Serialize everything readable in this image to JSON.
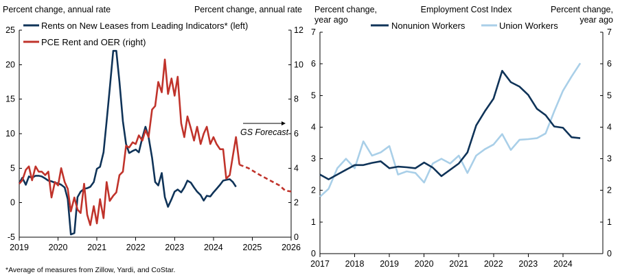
{
  "chart_data": [
    {
      "type": "line",
      "left_axis_title": "Percent change, annual rate",
      "right_axis_title": "Percent change, annual rate",
      "x_ticks": [
        "2019",
        "2020",
        "2021",
        "2022",
        "2023",
        "2024",
        "2025",
        "2026"
      ],
      "left_ylim": [
        -5,
        25
      ],
      "left_ticks": [
        -5,
        0,
        5,
        10,
        15,
        20,
        25
      ],
      "right_ylim": [
        0,
        12
      ],
      "right_ticks": [
        0,
        2,
        4,
        6,
        8,
        10,
        12
      ],
      "annotation": "GS Forecast",
      "footnote": "*Average of measures  from Zillow, Yardi, and CoStar.",
      "series": [
        {
          "name": "Rents on New Leases from Leading Indicators* (left)",
          "axis": "left",
          "color": "#0f3358",
          "x": [
            2019.0,
            2019.08,
            2019.17,
            2019.25,
            2019.33,
            2019.42,
            2019.5,
            2019.58,
            2019.67,
            2019.75,
            2019.83,
            2019.92,
            2020.0,
            2020.08,
            2020.17,
            2020.25,
            2020.33,
            2020.42,
            2020.5,
            2020.58,
            2020.67,
            2020.75,
            2020.83,
            2020.92,
            2021.0,
            2021.08,
            2021.17,
            2021.25,
            2021.33,
            2021.42,
            2021.5,
            2021.58,
            2021.67,
            2021.75,
            2021.83,
            2021.92,
            2022.0,
            2022.08,
            2022.17,
            2022.25,
            2022.33,
            2022.42,
            2022.5,
            2022.58,
            2022.67,
            2022.75,
            2022.83,
            2022.92,
            2023.0,
            2023.08,
            2023.17,
            2023.25,
            2023.33,
            2023.42,
            2023.5,
            2023.58,
            2023.67,
            2023.75,
            2023.83,
            2023.92,
            2024.0,
            2024.08,
            2024.17,
            2024.25,
            2024.33,
            2024.42,
            2024.5,
            2024.58
          ],
          "values": [
            2.8,
            3.6,
            2.6,
            3.8,
            3.6,
            3.9,
            3.9,
            3.8,
            3.5,
            3.2,
            3.1,
            2.9,
            2.8,
            2.6,
            2.2,
            0.5,
            -4.6,
            -4.4,
            0.8,
            1.6,
            2.0,
            2.1,
            2.3,
            3.0,
            4.9,
            5.2,
            7.3,
            11.8,
            16.5,
            22.0,
            22.0,
            17.5,
            11.8,
            8.5,
            7.2,
            7.5,
            7.7,
            7.3,
            9.4,
            11.0,
            9.5,
            6.5,
            3.0,
            2.5,
            4.3,
            0.8,
            -0.6,
            0.5,
            1.6,
            1.9,
            1.5,
            2.2,
            3.2,
            2.9,
            2.2,
            1.6,
            1.1,
            0.3,
            1.0,
            0.9,
            1.5,
            2.0,
            2.6,
            3.2,
            3.3,
            3.4,
            3.0,
            2.3
          ]
        },
        {
          "name": "PCE Rent and OER (right)",
          "axis": "right",
          "color": "#c0332b",
          "x": [
            2019.0,
            2019.08,
            2019.17,
            2019.25,
            2019.33,
            2019.42,
            2019.5,
            2019.58,
            2019.67,
            2019.75,
            2019.83,
            2019.92,
            2020.0,
            2020.08,
            2020.17,
            2020.25,
            2020.33,
            2020.42,
            2020.5,
            2020.58,
            2020.67,
            2020.75,
            2020.83,
            2020.92,
            2021.0,
            2021.08,
            2021.17,
            2021.25,
            2021.33,
            2021.42,
            2021.5,
            2021.58,
            2021.67,
            2021.75,
            2021.83,
            2021.92,
            2022.0,
            2022.08,
            2022.17,
            2022.25,
            2022.33,
            2022.42,
            2022.5,
            2022.58,
            2022.67,
            2022.75,
            2022.83,
            2022.92,
            2023.0,
            2023.08,
            2023.17,
            2023.25,
            2023.33,
            2023.42,
            2023.5,
            2023.58,
            2023.67,
            2023.75,
            2023.83,
            2023.92,
            2024.0,
            2024.08,
            2024.17,
            2024.25,
            2024.33,
            2024.42,
            2024.5,
            2024.58,
            2024.67
          ],
          "values": [
            3.1,
            3.3,
            3.9,
            4.1,
            3.3,
            4.1,
            3.8,
            3.8,
            3.6,
            3.8,
            2.3,
            3.2,
            3.0,
            4.0,
            3.2,
            2.8,
            1.5,
            2.3,
            1.6,
            1.4,
            3.1,
            1.3,
            0.7,
            1.8,
            0.8,
            2.2,
            1.1,
            3.2,
            2.1,
            2.4,
            2.6,
            3.6,
            3.8,
            5.3,
            5.2,
            5.5,
            5.4,
            5.9,
            5.6,
            6.2,
            5.8,
            7.4,
            7.6,
            9.0,
            8.4,
            10.3,
            8.3,
            9.2,
            8.2,
            9.3,
            6.6,
            5.8,
            7.0,
            6.3,
            5.6,
            6.4,
            5.4,
            6.0,
            6.4,
            5.4,
            5.8,
            5.4,
            5.1,
            5.1,
            3.4,
            3.6,
            4.7,
            5.8,
            4.2
          ]
        },
        {
          "name": "PCE Rent and OER forecast",
          "axis": "right",
          "color": "#c0332b",
          "dashed": true,
          "x": [
            2024.67,
            2024.9,
            2025.2,
            2025.45,
            2025.7,
            2025.85,
            2026.0
          ],
          "values": [
            4.2,
            4.0,
            3.6,
            3.3,
            3.0,
            2.7,
            2.65
          ]
        }
      ]
    },
    {
      "type": "line",
      "title": "Employment Cost Index",
      "left_axis_title": "Percent change, year ago",
      "right_axis_title": "Percent change, year ago",
      "x_ticks": [
        "2017",
        "2018",
        "2019",
        "2020",
        "2021",
        "2022",
        "2023",
        "2024"
      ],
      "ylim": [
        0,
        7
      ],
      "y_ticks": [
        0,
        1,
        2,
        3,
        4,
        5,
        6,
        7
      ],
      "series": [
        {
          "name": "Nonunion Workers",
          "color": "#0f3358",
          "x": [
            2017.0,
            2017.25,
            2017.5,
            2017.75,
            2018.0,
            2018.25,
            2018.5,
            2018.75,
            2019.0,
            2019.25,
            2019.5,
            2019.75,
            2020.0,
            2020.25,
            2020.5,
            2020.75,
            2021.0,
            2021.25,
            2021.5,
            2021.75,
            2022.0,
            2022.25,
            2022.5,
            2022.75,
            2023.0,
            2023.25,
            2023.5,
            2023.75,
            2024.0,
            2024.25,
            2024.5
          ],
          "values": [
            2.5,
            2.35,
            2.5,
            2.65,
            2.8,
            2.8,
            2.87,
            2.92,
            2.7,
            2.75,
            2.73,
            2.7,
            2.88,
            2.72,
            2.45,
            2.65,
            2.85,
            3.2,
            4.05,
            4.5,
            4.9,
            5.78,
            5.42,
            5.28,
            5.02,
            4.58,
            4.38,
            4.02,
            3.98,
            3.68,
            3.65
          ]
        },
        {
          "name": "Union Workers",
          "color": "#a9cfe8",
          "x": [
            2017.0,
            2017.25,
            2017.5,
            2017.75,
            2018.0,
            2018.25,
            2018.5,
            2018.75,
            2019.0,
            2019.25,
            2019.5,
            2019.75,
            2020.0,
            2020.25,
            2020.5,
            2020.75,
            2021.0,
            2021.25,
            2021.5,
            2021.75,
            2022.0,
            2022.25,
            2022.5,
            2022.75,
            2023.0,
            2023.25,
            2023.5,
            2023.75,
            2024.0,
            2024.25,
            2024.5
          ],
          "values": [
            1.8,
            2.05,
            2.7,
            3.0,
            2.7,
            3.55,
            3.1,
            3.2,
            3.4,
            2.5,
            2.6,
            2.55,
            2.25,
            2.85,
            3.0,
            2.85,
            3.1,
            2.55,
            3.1,
            3.3,
            3.45,
            3.78,
            3.28,
            3.6,
            3.62,
            3.65,
            3.8,
            4.5,
            5.15,
            5.6,
            6.02
          ]
        }
      ]
    }
  ]
}
